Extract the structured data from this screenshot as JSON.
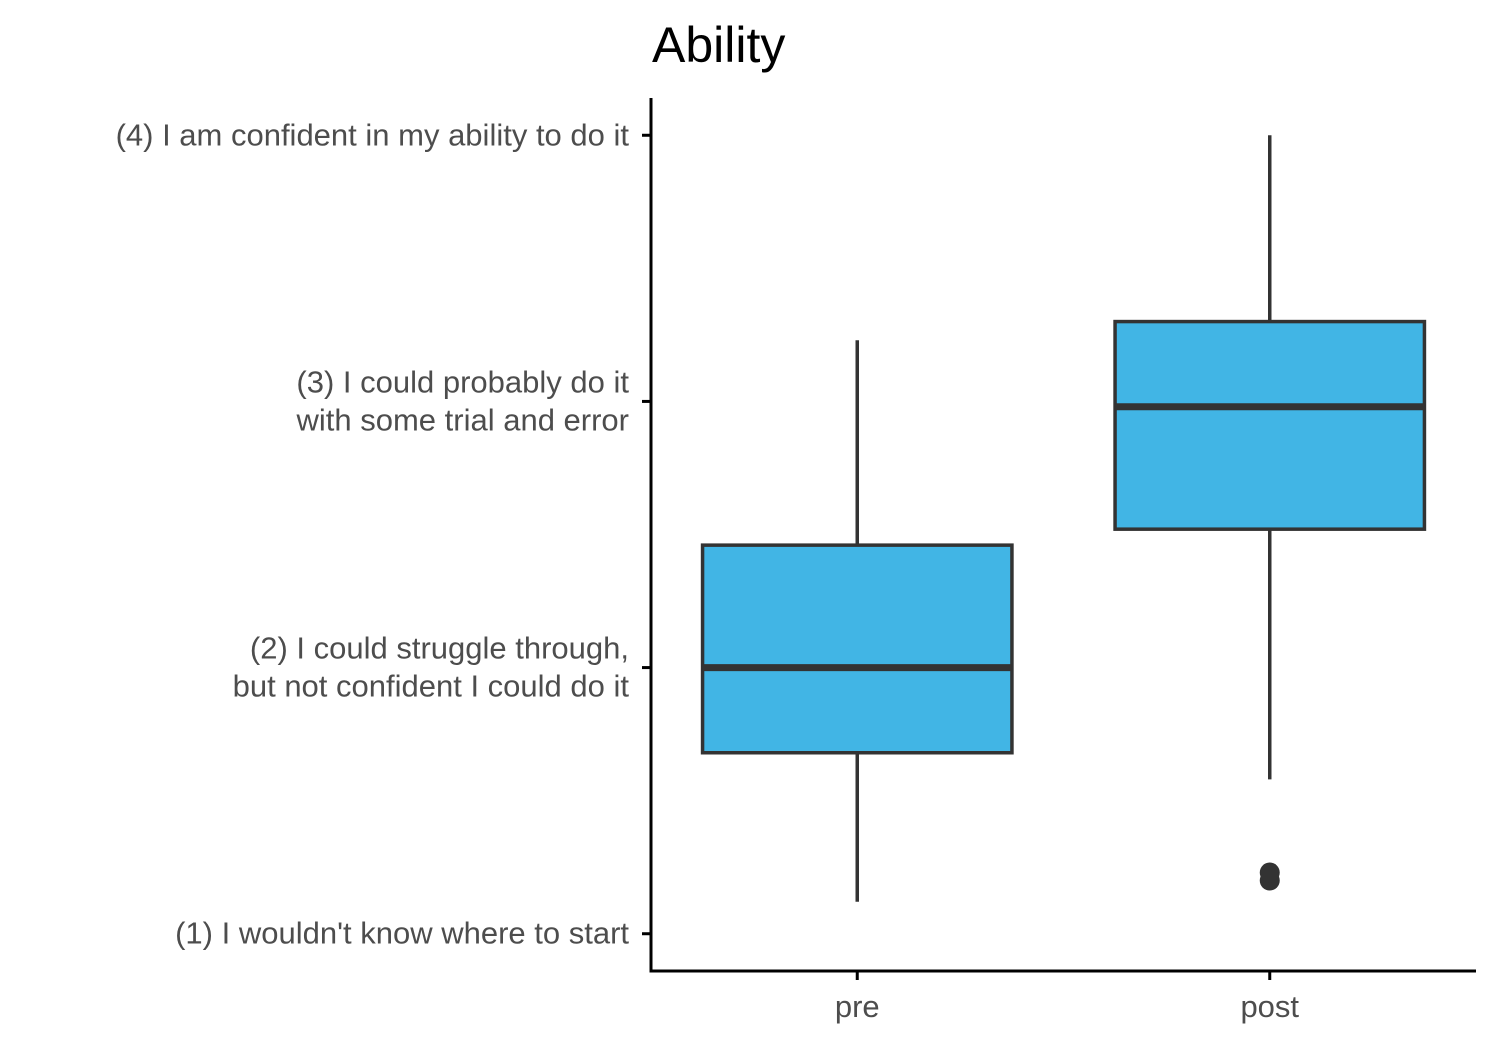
{
  "chart_data": {
    "type": "box",
    "title": "Ability",
    "xlabel": "",
    "ylabel": "",
    "categories": [
      "pre",
      "post"
    ],
    "y_ticks": [
      {
        "value": 1,
        "lines": [
          "(1) I wouldn't know where to start"
        ]
      },
      {
        "value": 2,
        "lines": [
          "(2) I could struggle through,",
          "but not confident I could do it"
        ]
      },
      {
        "value": 3,
        "lines": [
          "(3) I could probably do it",
          "with some trial and error"
        ]
      },
      {
        "value": 4,
        "lines": [
          "(4) I am confident in my ability to do it"
        ]
      }
    ],
    "ylim": [
      0.86,
      4.14
    ],
    "boxes": [
      {
        "category": "pre",
        "whisker_low": 1.12,
        "q1": 1.68,
        "median": 2.0,
        "q3": 2.46,
        "whisker_high": 3.23,
        "outliers": []
      },
      {
        "category": "post",
        "whisker_low": 1.58,
        "q1": 2.52,
        "median": 2.98,
        "q3": 3.3,
        "whisker_high": 4.0,
        "outliers": [
          1.2,
          1.23
        ]
      }
    ],
    "colors": {
      "box_fill": "#41b5e5",
      "box_stroke": "#333333",
      "axis": "#000000",
      "tick_text": "#4d4d4d",
      "title": "#000000"
    },
    "grid": false,
    "legend": "none"
  }
}
